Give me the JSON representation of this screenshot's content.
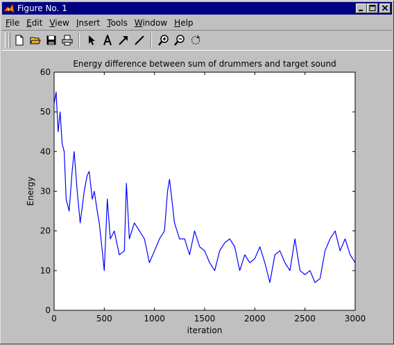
{
  "window": {
    "title": "Figure No. 1"
  },
  "menu": [
    {
      "name": "menu-file",
      "pre": "",
      "ul": "F",
      "post": "ile"
    },
    {
      "name": "menu-edit",
      "pre": "",
      "ul": "E",
      "post": "dit"
    },
    {
      "name": "menu-view",
      "pre": "",
      "ul": "V",
      "post": "iew"
    },
    {
      "name": "menu-insert",
      "pre": "",
      "ul": "I",
      "post": "nsert"
    },
    {
      "name": "menu-tools",
      "pre": "",
      "ul": "T",
      "post": "ools"
    },
    {
      "name": "menu-window",
      "pre": "",
      "ul": "W",
      "post": "indow"
    },
    {
      "name": "menu-help",
      "pre": "",
      "ul": "H",
      "post": "elp"
    }
  ],
  "toolbar_icons": [
    "new-file-icon",
    "open-folder-icon",
    "save-icon",
    "print-icon",
    "select-arrow-icon",
    "insert-text-icon",
    "insert-arrow-icon",
    "insert-line-icon",
    "zoom-in-icon",
    "zoom-out-icon",
    "rotate-icon"
  ],
  "colors": {
    "titlebar": "#000080",
    "series": "#0000ff",
    "plot_bg": "#ffffff",
    "figure_bg": "#c0c0c0"
  },
  "chart_data": {
    "type": "line",
    "title": "Energy difference between sum of drummers and target sound",
    "xlabel": "iteration",
    "ylabel": "Energy",
    "xlim": [
      0,
      3000
    ],
    "ylim": [
      0,
      60
    ],
    "xticks": [
      "0",
      "500",
      "1000",
      "1500",
      "2000",
      "2500",
      "3000"
    ],
    "yticks": [
      "0",
      "10",
      "20",
      "30",
      "40",
      "50",
      "60"
    ],
    "grid": false,
    "series": [
      {
        "color": "#0000ff",
        "x": [
          0,
          20,
          40,
          60,
          80,
          100,
          120,
          150,
          180,
          200,
          230,
          260,
          300,
          330,
          350,
          380,
          400,
          430,
          450,
          480,
          500,
          530,
          560,
          600,
          650,
          700,
          720,
          750,
          800,
          850,
          900,
          950,
          1000,
          1050,
          1100,
          1130,
          1150,
          1200,
          1250,
          1300,
          1350,
          1400,
          1450,
          1500,
          1550,
          1600,
          1650,
          1700,
          1750,
          1800,
          1850,
          1900,
          1950,
          2000,
          2050,
          2100,
          2150,
          2200,
          2250,
          2300,
          2350,
          2400,
          2450,
          2500,
          2550,
          2600,
          2650,
          2700,
          2750,
          2800,
          2850,
          2900,
          2950,
          3000
        ],
        "y": [
          52,
          55,
          45,
          50,
          42,
          40,
          28,
          25,
          35,
          40,
          30,
          22,
          30,
          34,
          35,
          28,
          30,
          25,
          22,
          15,
          10,
          28,
          18,
          20,
          14,
          15,
          32,
          18,
          22,
          20,
          18,
          12,
          15,
          18,
          20,
          30,
          33,
          22,
          18,
          18,
          14,
          20,
          16,
          15,
          12,
          10,
          15,
          17,
          18,
          16,
          10,
          14,
          12,
          13,
          16,
          12,
          7,
          14,
          15,
          12,
          10,
          18,
          10,
          9,
          10,
          7,
          8,
          15,
          18,
          20,
          15,
          18,
          14,
          12
        ]
      }
    ]
  }
}
